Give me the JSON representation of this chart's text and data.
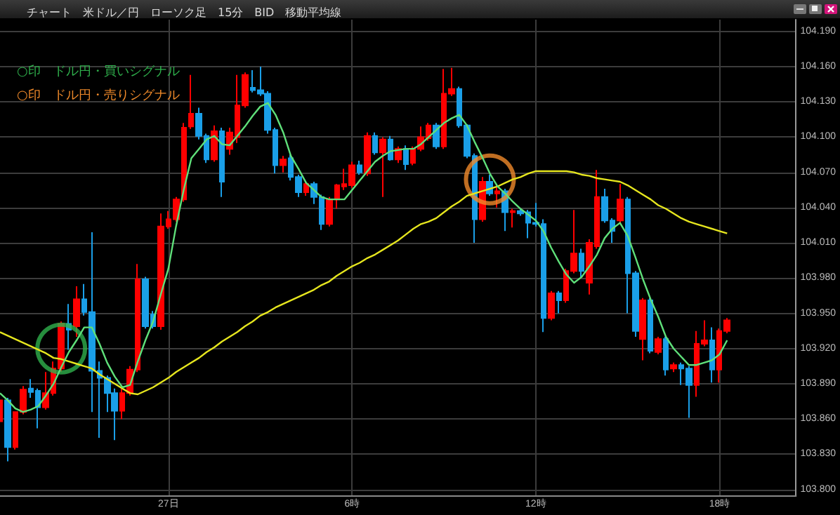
{
  "chart_data": {
    "type": "candlestick",
    "title": "チャート　米ドル／円　ローソク足　15分　BID　移動平均線",
    "categories": [
      null,
      null,
      null,
      null,
      null,
      null,
      null,
      null,
      null,
      null,
      null,
      null,
      null,
      null,
      null,
      null,
      null,
      null,
      null,
      null,
      null,
      null,
      "27日",
      null,
      null,
      null,
      null,
      null,
      null,
      null,
      null,
      null,
      null,
      null,
      null,
      null,
      null,
      null,
      null,
      null,
      null,
      null,
      null,
      null,
      null,
      null,
      "6時",
      null,
      null,
      null,
      null,
      null,
      null,
      null,
      null,
      null,
      null,
      null,
      null,
      null,
      null,
      null,
      null,
      null,
      null,
      null,
      null,
      null,
      null,
      null,
      "12時",
      null,
      null,
      null,
      null,
      null,
      null,
      null,
      null,
      null,
      null,
      null,
      null,
      null,
      null,
      null,
      null,
      null,
      null,
      null,
      null,
      null,
      null,
      null,
      "18時",
      null
    ],
    "ylim": [
      103.795,
      104.2
    ],
    "yticks": [
      {
        "value": 103.8,
        "label": "103.800"
      },
      {
        "value": 103.83,
        "label": "103.830"
      },
      {
        "value": 103.86,
        "label": "103.860"
      },
      {
        "value": 103.89,
        "label": "103.890"
      },
      {
        "value": 103.92,
        "label": "103.920"
      },
      {
        "value": 103.95,
        "label": "103.950"
      },
      {
        "value": 103.98,
        "label": "103.980"
      },
      {
        "value": 104.01,
        "label": "104.010"
      },
      {
        "value": 104.04,
        "label": "104.040"
      },
      {
        "value": 104.07,
        "label": "104.070"
      },
      {
        "value": 104.1,
        "label": "104.100"
      },
      {
        "value": 104.13,
        "label": "104.130"
      },
      {
        "value": 104.16,
        "label": "104.160"
      },
      {
        "value": 104.19,
        "label": "104.190"
      }
    ],
    "grid": true,
    "legend": "top left",
    "series": [
      {
        "type": "line",
        "color": "#e6e61e",
        "values": [
          103.934,
          103.931,
          103.928,
          103.925,
          103.922,
          103.919,
          103.916,
          103.912,
          103.911,
          103.909,
          103.907,
          103.905,
          103.903,
          103.898,
          103.894,
          103.89,
          103.886,
          103.882,
          103.881,
          103.884,
          103.887,
          103.891,
          103.895,
          103.9,
          103.904,
          103.908,
          103.912,
          103.917,
          103.921,
          103.926,
          103.93,
          103.934,
          103.939,
          103.943,
          103.948,
          103.951,
          103.955,
          103.958,
          103.961,
          103.964,
          103.967,
          103.97,
          103.974,
          103.977,
          103.982,
          103.986,
          103.99,
          103.993,
          103.997,
          104.0,
          104.004,
          104.008,
          104.012,
          104.017,
          104.022,
          104.026,
          104.028,
          104.031,
          104.036,
          104.041,
          104.045,
          104.05,
          104.052,
          104.054,
          104.056,
          104.058,
          104.061,
          104.064,
          104.066,
          104.069,
          104.071,
          104.071,
          104.071,
          104.071,
          104.071,
          104.07,
          104.068,
          104.067,
          104.065,
          104.064,
          104.063,
          104.062,
          104.059,
          104.055,
          104.051,
          104.047,
          104.042,
          104.039,
          104.035,
          104.031,
          104.028,
          104.026,
          104.024,
          104.022,
          104.02,
          104.018
        ]
      },
      {
        "type": "line",
        "color": "#5fe07a",
        "values": [
          103.882,
          103.876,
          103.869,
          103.866,
          103.868,
          103.871,
          103.88,
          103.89,
          103.904,
          103.917,
          103.927,
          103.938,
          103.938,
          103.924,
          103.908,
          103.896,
          103.887,
          103.889,
          103.909,
          103.927,
          103.943,
          103.966,
          103.988,
          104.024,
          104.055,
          104.082,
          104.09,
          104.098,
          104.101,
          104.094,
          104.093,
          104.101,
          104.109,
          104.118,
          104.126,
          104.129,
          104.119,
          104.104,
          104.084,
          104.073,
          104.061,
          104.055,
          104.049,
          104.047,
          104.047,
          104.047,
          104.055,
          104.063,
          104.071,
          104.079,
          104.084,
          104.088,
          104.089,
          104.09,
          104.09,
          104.094,
          104.1,
          104.106,
          104.112,
          104.116,
          104.119,
          104.11,
          104.096,
          104.083,
          104.069,
          104.058,
          104.052,
          104.045,
          104.039,
          104.034,
          104.029,
          104.02,
          104.006,
          103.994,
          103.983,
          103.976,
          103.981,
          103.99,
          104.0,
          104.014,
          104.022,
          104.027,
          104.016,
          103.998,
          103.979,
          103.962,
          103.947,
          103.93,
          103.92,
          103.913,
          103.906,
          103.906,
          103.908,
          103.91,
          103.915,
          103.927
        ]
      },
      {
        "ohlc": [
          [
            103.858,
            103.878,
            103.855,
            103.876
          ],
          [
            103.876,
            103.878,
            103.824,
            103.836
          ],
          [
            103.836,
            103.866,
            103.834,
            103.866
          ],
          [
            103.866,
            103.888,
            103.864,
            103.885
          ],
          [
            103.886,
            103.894,
            103.878,
            103.883
          ],
          [
            103.884,
            103.886,
            103.852,
            103.87
          ],
          [
            103.87,
            103.9,
            103.868,
            103.882
          ],
          [
            103.882,
            103.909,
            103.88,
            103.903
          ],
          [
            103.903,
            103.943,
            103.9,
            103.941
          ],
          [
            103.941,
            103.958,
            103.919,
            103.936
          ],
          [
            103.939,
            103.973,
            103.93,
            103.962
          ],
          [
            103.962,
            103.975,
            103.948,
            103.951
          ],
          [
            103.951,
            104.019,
            103.866,
            103.901
          ],
          [
            103.901,
            103.909,
            103.844,
            103.895
          ],
          [
            103.895,
            103.897,
            103.866,
            103.882
          ],
          [
            103.882,
            103.886,
            103.842,
            103.867
          ],
          [
            103.867,
            103.886,
            103.86,
            103.882
          ],
          [
            103.882,
            103.905,
            103.88,
            103.902
          ],
          [
            103.902,
            103.992,
            103.9,
            103.979
          ],
          [
            103.979,
            103.981,
            103.937,
            103.939
          ],
          [
            103.949,
            103.952,
            103.937,
            103.939
          ],
          [
            103.939,
            104.035,
            103.936,
            104.024
          ],
          [
            104.024,
            104.037,
            104.022,
            104.03
          ],
          [
            104.03,
            104.049,
            104.028,
            104.047
          ],
          [
            104.047,
            104.112,
            104.045,
            104.108
          ],
          [
            104.109,
            104.153,
            104.107,
            104.12
          ],
          [
            104.12,
            104.125,
            104.098,
            104.101
          ],
          [
            104.101,
            104.103,
            104.078,
            104.081
          ],
          [
            104.081,
            104.11,
            104.079,
            104.105
          ],
          [
            104.105,
            104.108,
            104.049,
            104.062
          ],
          [
            104.09,
            104.108,
            104.085,
            104.104
          ],
          [
            104.1,
            104.153,
            104.095,
            104.127
          ],
          [
            104.127,
            104.155,
            104.125,
            104.153
          ],
          [
            104.142,
            104.157,
            104.138,
            104.14
          ],
          [
            104.14,
            104.16,
            104.135,
            104.137
          ],
          [
            104.137,
            104.139,
            104.103,
            104.106
          ],
          [
            104.106,
            104.108,
            104.069,
            104.076
          ],
          [
            104.076,
            104.084,
            104.07,
            104.081
          ],
          [
            104.082,
            104.085,
            104.063,
            104.066
          ],
          [
            104.066,
            104.068,
            104.049,
            104.053
          ],
          [
            104.053,
            104.062,
            104.05,
            104.06
          ],
          [
            104.06,
            104.062,
            104.043,
            104.049
          ],
          [
            104.049,
            104.051,
            104.021,
            104.026
          ],
          [
            104.026,
            104.049,
            104.024,
            104.047
          ],
          [
            104.047,
            104.06,
            104.039,
            104.059
          ],
          [
            104.058,
            104.073,
            104.055,
            104.06
          ],
          [
            104.059,
            104.079,
            104.057,
            104.076
          ],
          [
            104.076,
            104.08,
            104.068,
            104.07
          ],
          [
            104.069,
            104.104,
            104.067,
            104.101
          ],
          [
            104.101,
            104.104,
            104.085,
            104.087
          ],
          [
            104.087,
            104.1,
            104.049,
            104.098
          ],
          [
            104.098,
            104.101,
            104.08,
            104.081
          ],
          [
            104.081,
            104.092,
            104.078,
            104.09
          ],
          [
            104.09,
            104.093,
            104.072,
            104.077
          ],
          [
            104.078,
            104.092,
            104.076,
            104.09
          ],
          [
            104.09,
            104.109,
            104.088,
            104.1
          ],
          [
            104.099,
            104.112,
            104.097,
            104.11
          ],
          [
            104.11,
            104.112,
            104.09,
            104.092
          ],
          [
            104.092,
            104.158,
            104.09,
            104.137
          ],
          [
            104.137,
            104.159,
            104.135,
            104.141
          ],
          [
            104.141,
            104.143,
            104.108,
            104.11
          ],
          [
            104.11,
            104.111,
            104.082,
            104.084
          ],
          [
            104.084,
            104.086,
            104.01,
            104.03
          ],
          [
            104.03,
            104.066,
            104.028,
            104.062
          ],
          [
            104.062,
            104.068,
            104.05,
            104.052
          ],
          [
            104.052,
            104.06,
            104.04,
            104.054
          ],
          [
            104.054,
            104.056,
            104.02,
            104.036
          ],
          [
            104.036,
            104.039,
            104.023,
            104.037
          ],
          [
            104.037,
            104.039,
            104.033,
            104.035
          ],
          [
            104.036,
            104.038,
            104.014,
            104.027
          ],
          [
            104.027,
            104.044,
            104.024,
            104.026
          ],
          [
            104.026,
            104.03,
            103.934,
            103.946
          ],
          [
            103.946,
            103.969,
            103.944,
            103.967
          ],
          [
            103.967,
            103.969,
            103.95,
            103.961
          ],
          [
            103.961,
            103.988,
            103.959,
            103.986
          ],
          [
            103.986,
            104.038,
            103.984,
            104.001
          ],
          [
            104.001,
            104.005,
            103.98,
            103.986
          ],
          [
            103.976,
            104.013,
            103.966,
            104.01
          ],
          [
            104.007,
            104.072,
            104.005,
            104.049
          ],
          [
            104.049,
            104.056,
            104.027,
            104.029
          ],
          [
            104.029,
            104.031,
            104.01,
            104.02
          ],
          [
            104.029,
            104.06,
            104.027,
            104.047
          ],
          [
            104.047,
            104.049,
            103.95,
            103.984
          ],
          [
            103.984,
            103.986,
            103.93,
            103.935
          ],
          [
            103.928,
            103.963,
            103.91,
            103.961
          ],
          [
            103.961,
            103.963,
            103.916,
            103.918
          ],
          [
            103.917,
            103.93,
            103.915,
            103.928
          ],
          [
            103.928,
            103.93,
            103.897,
            103.902
          ],
          [
            103.903,
            103.908,
            103.9,
            103.906
          ],
          [
            103.906,
            103.908,
            103.889,
            103.903
          ],
          [
            103.903,
            103.905,
            103.861,
            103.889
          ],
          [
            103.889,
            103.935,
            103.879,
            103.924
          ],
          [
            103.924,
            103.944,
            103.922,
            103.927
          ],
          [
            103.927,
            103.938,
            103.891,
            103.902
          ],
          [
            103.902,
            103.937,
            103.891,
            103.935
          ],
          [
            103.935,
            103.946,
            103.933,
            103.944
          ]
        ],
        "colors": [
          "#ff0000",
          "#1a9fe8",
          "#ff0000",
          "#ff0000",
          "#1a9fe8",
          "#1a9fe8",
          "#ff0000",
          "#ff0000",
          "#ff0000",
          "#1a9fe8",
          "#ff0000",
          "#1a9fe8",
          "#1a9fe8",
          "#1a9fe8",
          "#1a9fe8",
          "#1a9fe8",
          "#ff0000",
          "#ff0000",
          "#ff0000",
          "#1a9fe8",
          "#1a9fe8",
          "#ff0000",
          "#ff0000",
          "#ff0000",
          "#ff0000",
          "#ff0000",
          "#1a9fe8",
          "#1a9fe8",
          "#ff0000",
          "#1a9fe8",
          "#ff0000",
          "#ff0000",
          "#ff0000",
          "#1a9fe8",
          "#1a9fe8",
          "#1a9fe8",
          "#1a9fe8",
          "#ff0000",
          "#1a9fe8",
          "#1a9fe8",
          "#ff0000",
          "#1a9fe8",
          "#1a9fe8",
          "#ff0000",
          "#ff0000",
          "#ff0000",
          "#ff0000",
          "#1a9fe8",
          "#ff0000",
          "#1a9fe8",
          "#ff0000",
          "#1a9fe8",
          "#ff0000",
          "#1a9fe8",
          "#ff0000",
          "#ff0000",
          "#ff0000",
          "#1a9fe8",
          "#ff0000",
          "#ff0000",
          "#1a9fe8",
          "#1a9fe8",
          "#1a9fe8",
          "#ff0000",
          "#1a9fe8",
          "#ff0000",
          "#1a9fe8",
          "#ff0000",
          "#1a9fe8",
          "#1a9fe8",
          "#1a9fe8",
          "#1a9fe8",
          "#ff0000",
          "#1a9fe8",
          "#ff0000",
          "#ff0000",
          "#1a9fe8",
          "#ff0000",
          "#ff0000",
          "#1a9fe8",
          "#1a9fe8",
          "#ff0000",
          "#1a9fe8",
          "#1a9fe8",
          "#ff0000",
          "#1a9fe8",
          "#ff0000",
          "#1a9fe8",
          "#ff0000",
          "#1a9fe8",
          "#1a9fe8",
          "#ff0000",
          "#ff0000",
          "#1a9fe8",
          "#ff0000",
          "#ff0000"
        ]
      },
      {
        "type": "scatter",
        "name": "○印　ドル円・買いシグナル",
        "color": "#2fb04c",
        "marker": "circle",
        "values": [
          null,
          null,
          null,
          null,
          null,
          null,
          null,
          null,
          103.92,
          null,
          null,
          null,
          null,
          null,
          null,
          null,
          null,
          null,
          null,
          null,
          null,
          null,
          null,
          null,
          null,
          null,
          null,
          null,
          null,
          null,
          null,
          null,
          null,
          null,
          null,
          null,
          null,
          null,
          null,
          null,
          null,
          null,
          null,
          null,
          null,
          null,
          null,
          null,
          null,
          null,
          null,
          null,
          null,
          null,
          null,
          null,
          null,
          null,
          null,
          null,
          null,
          null,
          null,
          null,
          null,
          null,
          null,
          null,
          null,
          null,
          null,
          null,
          null,
          null,
          null,
          null,
          null,
          null,
          null,
          null,
          null,
          null,
          null,
          null,
          null,
          null,
          null,
          null,
          null,
          null,
          null,
          null,
          null,
          null,
          null,
          null
        ]
      },
      {
        "type": "scatter",
        "name": "○印　ドル円・売りシグナル",
        "color": "#f08a2a",
        "marker": "circle",
        "values": [
          null,
          null,
          null,
          null,
          null,
          null,
          null,
          null,
          null,
          null,
          null,
          null,
          null,
          null,
          null,
          null,
          null,
          null,
          null,
          null,
          null,
          null,
          null,
          null,
          null,
          null,
          null,
          null,
          null,
          null,
          null,
          null,
          null,
          null,
          null,
          null,
          null,
          null,
          null,
          null,
          null,
          null,
          null,
          null,
          null,
          null,
          null,
          null,
          null,
          null,
          null,
          null,
          null,
          null,
          null,
          null,
          null,
          null,
          null,
          null,
          null,
          null,
          null,
          null,
          104.064,
          null,
          null,
          null,
          null,
          null,
          null,
          null,
          null,
          null,
          null,
          null,
          null,
          null,
          null,
          null,
          null,
          null,
          null,
          null,
          null,
          null,
          null,
          null,
          null,
          null,
          null,
          null,
          null,
          null,
          null,
          null
        ]
      }
    ]
  }
}
